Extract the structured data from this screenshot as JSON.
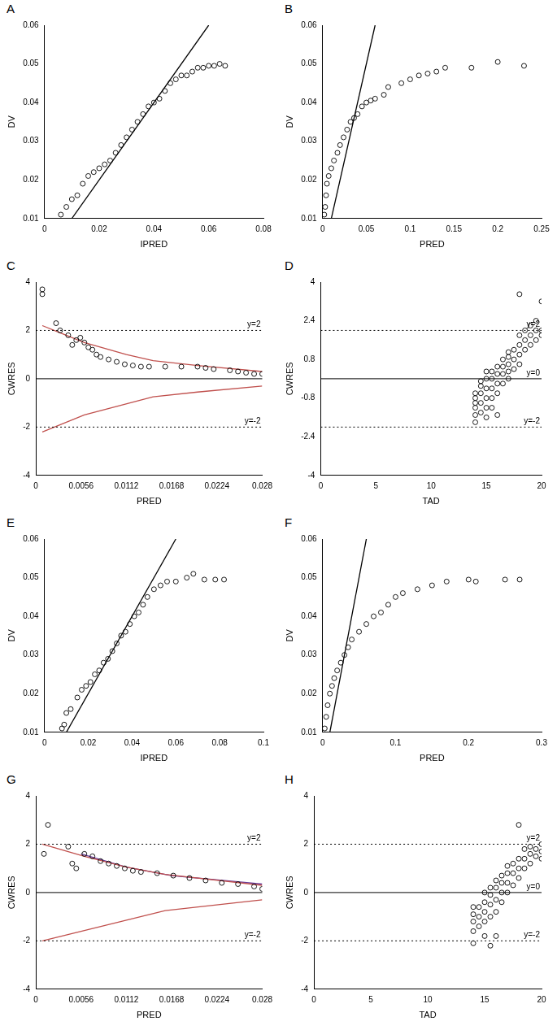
{
  "chart_data": [
    {
      "type": "scatter",
      "title": "A",
      "x_label": "IPRED",
      "y_label": "DV",
      "grid": false,
      "xlim": [
        0,
        0.08
      ],
      "xticks": [
        0,
        0.02,
        0.04,
        0.06,
        0.08
      ],
      "ylim": [
        0.01,
        0.06
      ],
      "yticks": [
        0.01,
        0.02,
        0.03,
        0.04,
        0.05,
        0.06
      ],
      "series": [
        {
          "type": "scatter",
          "marker": "circle",
          "color": "#000000",
          "x": [
            0.006,
            0.008,
            0.01,
            0.012,
            0.014,
            0.016,
            0.018,
            0.02,
            0.022,
            0.024,
            0.026,
            0.028,
            0.03,
            0.032,
            0.034,
            0.036,
            0.038,
            0.04,
            0.042,
            0.044,
            0.046,
            0.048,
            0.05,
            0.052,
            0.054,
            0.056,
            0.058,
            0.06,
            0.062,
            0.064,
            0.066
          ],
          "values": [
            0.011,
            0.013,
            0.015,
            0.016,
            0.019,
            0.021,
            0.022,
            0.023,
            0.024,
            0.025,
            0.027,
            0.029,
            0.031,
            0.033,
            0.035,
            0.037,
            0.039,
            0.04,
            0.041,
            0.043,
            0.045,
            0.046,
            0.047,
            0.047,
            0.048,
            0.049,
            0.049,
            0.0495,
            0.0495,
            0.05,
            0.0495
          ]
        },
        {
          "type": "line",
          "line_style": "solid",
          "color": "#000000",
          "x": [
            0.01,
            0.06
          ],
          "values": [
            0.01,
            0.06
          ]
        }
      ]
    },
    {
      "type": "scatter",
      "title": "B",
      "x_label": "PRED",
      "y_label": "DV",
      "grid": false,
      "xlim": [
        0,
        0.25
      ],
      "xticks": [
        0,
        0.05,
        0.1,
        0.15,
        0.2,
        0.25
      ],
      "ylim": [
        0.01,
        0.06
      ],
      "yticks": [
        0.01,
        0.02,
        0.03,
        0.04,
        0.05,
        0.06
      ],
      "series": [
        {
          "type": "scatter",
          "marker": "circle",
          "color": "#000000",
          "x": [
            0.002,
            0.003,
            0.004,
            0.005,
            0.007,
            0.01,
            0.013,
            0.017,
            0.02,
            0.024,
            0.028,
            0.032,
            0.036,
            0.04,
            0.045,
            0.05,
            0.055,
            0.06,
            0.07,
            0.075,
            0.09,
            0.1,
            0.11,
            0.12,
            0.13,
            0.14,
            0.17,
            0.2,
            0.23
          ],
          "values": [
            0.011,
            0.013,
            0.016,
            0.019,
            0.021,
            0.023,
            0.025,
            0.027,
            0.029,
            0.031,
            0.033,
            0.035,
            0.036,
            0.037,
            0.039,
            0.04,
            0.0405,
            0.041,
            0.042,
            0.044,
            0.045,
            0.046,
            0.047,
            0.0475,
            0.048,
            0.049,
            0.049,
            0.0505,
            0.0495
          ]
        },
        {
          "type": "line",
          "line_style": "solid",
          "color": "#000000",
          "x": [
            0.01,
            0.06
          ],
          "values": [
            0.01,
            0.06
          ]
        }
      ]
    },
    {
      "type": "scatter",
      "title": "C",
      "x_label": "PRED",
      "y_label": "CWRES",
      "grid": false,
      "xlim": [
        0,
        0.028
      ],
      "xticks": [
        0,
        0.0056,
        0.0112,
        0.0168,
        0.0224,
        0.028
      ],
      "ylim": [
        -4,
        4
      ],
      "yticks": [
        -4,
        -2,
        0,
        2,
        4
      ],
      "annotations": [
        {
          "value": 2,
          "label": "y=2",
          "line_style": "dotted"
        },
        {
          "value": 0,
          "line_style": "solid"
        },
        {
          "value": -2,
          "label": "y=-2",
          "line_style": "dotted"
        }
      ],
      "series": [
        {
          "type": "scatter",
          "marker": "circle",
          "color": "#000000",
          "x": [
            0.0008,
            0.0008,
            0.0025,
            0.003,
            0.004,
            0.0045,
            0.005,
            0.0055,
            0.006,
            0.0065,
            0.007,
            0.0075,
            0.008,
            0.009,
            0.01,
            0.011,
            0.012,
            0.013,
            0.014,
            0.016,
            0.018,
            0.02,
            0.021,
            0.022,
            0.024,
            0.025,
            0.026,
            0.027,
            0.028
          ],
          "values": [
            3.7,
            3.5,
            2.3,
            2.0,
            1.8,
            1.4,
            1.6,
            1.7,
            1.5,
            1.3,
            1.2,
            1.0,
            0.9,
            0.8,
            0.7,
            0.6,
            0.55,
            0.5,
            0.5,
            0.5,
            0.5,
            0.5,
            0.45,
            0.4,
            0.35,
            0.3,
            0.25,
            0.2,
            0.2
          ]
        },
        {
          "type": "line",
          "line_style": "solid",
          "color": "#c0504d",
          "x": [
            0.0008,
            0.003,
            0.006,
            0.0112,
            0.0145,
            0.02,
            0.028
          ],
          "values": [
            2.2,
            1.9,
            1.5,
            1.0,
            0.75,
            0.55,
            0.3
          ]
        },
        {
          "type": "line",
          "line_style": "solid",
          "color": "#c0504d",
          "x": [
            0.0008,
            0.006,
            0.0145,
            0.02,
            0.028
          ],
          "values": [
            -2.2,
            -1.5,
            -0.75,
            -0.55,
            -0.3
          ]
        }
      ]
    },
    {
      "type": "scatter",
      "title": "D",
      "x_label": "TAD",
      "y_label": "CWRES",
      "grid": false,
      "xlim": [
        0,
        20
      ],
      "xticks": [
        0,
        5,
        10,
        15,
        20
      ],
      "ylim": [
        -4,
        4
      ],
      "yticks": [
        -4,
        -2.4,
        -0.8,
        0.8,
        2.4,
        4
      ],
      "annotations": [
        {
          "value": 2,
          "label": "y=2",
          "line_style": "dotted"
        },
        {
          "value": 0,
          "label": "y=0",
          "line_style": "solid"
        },
        {
          "value": -2,
          "label": "y=-2",
          "line_style": "dotted"
        }
      ],
      "series": [
        {
          "type": "scatter",
          "marker": "circle",
          "color": "#000000",
          "x": [
            14,
            14,
            14,
            14,
            14,
            14,
            14.5,
            14.5,
            14.5,
            14.5,
            14.5,
            15,
            15,
            15,
            15,
            15,
            15,
            15.5,
            15.5,
            15.5,
            15.5,
            15.5,
            16,
            16,
            16,
            16,
            16,
            16.5,
            16.5,
            16.5,
            16.5,
            17,
            17,
            17,
            17,
            17,
            17.5,
            17.5,
            17.5,
            18,
            18,
            18,
            18,
            18,
            18.5,
            18.5,
            18.5,
            19,
            19,
            19,
            19.5,
            19.5,
            19.5,
            20,
            20,
            20
          ],
          "values": [
            -1.8,
            -1.5,
            -1.2,
            -1.0,
            -0.8,
            -0.6,
            -1.4,
            -1.0,
            -0.6,
            -0.3,
            -0.1,
            -1.6,
            -1.2,
            -0.8,
            -0.4,
            0,
            0.3,
            -1.2,
            -0.8,
            -0.4,
            0,
            0.3,
            -1.5,
            -0.6,
            -0.2,
            0.2,
            0.5,
            -0.2,
            0.2,
            0.5,
            0.8,
            0,
            0.3,
            0.6,
            0.9,
            1.1,
            0.4,
            0.8,
            1.2,
            0.6,
            1.0,
            1.4,
            1.8,
            3.5,
            1.2,
            1.6,
            2.0,
            1.4,
            1.8,
            2.2,
            1.6,
            2.0,
            2.4,
            1.8,
            2.0,
            3.2
          ]
        }
      ]
    },
    {
      "type": "scatter",
      "title": "E",
      "x_label": "IPRED",
      "y_label": "DV",
      "grid": false,
      "xlim": [
        0,
        0.1
      ],
      "xticks": [
        0,
        0.02,
        0.04,
        0.06,
        0.08,
        0.1
      ],
      "ylim": [
        0.01,
        0.06
      ],
      "yticks": [
        0.01,
        0.02,
        0.03,
        0.04,
        0.05,
        0.06
      ],
      "series": [
        {
          "type": "scatter",
          "marker": "circle",
          "color": "#000000",
          "x": [
            0.008,
            0.009,
            0.01,
            0.012,
            0.015,
            0.017,
            0.019,
            0.021,
            0.023,
            0.025,
            0.027,
            0.029,
            0.031,
            0.033,
            0.035,
            0.037,
            0.039,
            0.041,
            0.043,
            0.045,
            0.047,
            0.05,
            0.053,
            0.056,
            0.06,
            0.065,
            0.068,
            0.073,
            0.078,
            0.082
          ],
          "values": [
            0.011,
            0.012,
            0.015,
            0.016,
            0.019,
            0.021,
            0.022,
            0.023,
            0.025,
            0.026,
            0.028,
            0.029,
            0.031,
            0.033,
            0.035,
            0.036,
            0.038,
            0.04,
            0.041,
            0.043,
            0.045,
            0.047,
            0.048,
            0.049,
            0.049,
            0.05,
            0.051,
            0.0495,
            0.0495,
            0.0495
          ]
        },
        {
          "type": "line",
          "line_style": "solid",
          "color": "#000000",
          "x": [
            0.01,
            0.06
          ],
          "values": [
            0.01,
            0.06
          ]
        }
      ]
    },
    {
      "type": "scatter",
      "title": "F",
      "x_label": "PRED",
      "y_label": "DV",
      "grid": false,
      "xlim": [
        0,
        0.3
      ],
      "xticks": [
        0,
        0.1,
        0.2,
        0.3
      ],
      "ylim": [
        0.01,
        0.06
      ],
      "yticks": [
        0.01,
        0.02,
        0.03,
        0.04,
        0.05,
        0.06
      ],
      "series": [
        {
          "type": "scatter",
          "marker": "circle",
          "color": "#000000",
          "x": [
            0.003,
            0.005,
            0.007,
            0.01,
            0.013,
            0.016,
            0.02,
            0.025,
            0.03,
            0.035,
            0.04,
            0.05,
            0.06,
            0.07,
            0.08,
            0.09,
            0.1,
            0.11,
            0.13,
            0.15,
            0.17,
            0.2,
            0.21,
            0.25,
            0.27
          ],
          "values": [
            0.011,
            0.014,
            0.017,
            0.02,
            0.022,
            0.024,
            0.026,
            0.028,
            0.03,
            0.032,
            0.034,
            0.036,
            0.038,
            0.04,
            0.041,
            0.043,
            0.045,
            0.046,
            0.047,
            0.048,
            0.049,
            0.0495,
            0.049,
            0.0495,
            0.0495
          ]
        },
        {
          "type": "line",
          "line_style": "solid",
          "color": "#000000",
          "x": [
            0.01,
            0.06
          ],
          "values": [
            0.01,
            0.06
          ]
        }
      ]
    },
    {
      "type": "scatter",
      "title": "G",
      "x_label": "PRED",
      "y_label": "CWRES",
      "grid": false,
      "xlim": [
        0,
        0.028
      ],
      "xticks": [
        0,
        0.0056,
        0.0112,
        0.0168,
        0.0224,
        0.028
      ],
      "ylim": [
        -4,
        4
      ],
      "yticks": [
        -4,
        -2,
        0,
        2,
        4
      ],
      "annotations": [
        {
          "value": 2,
          "label": "y=2",
          "line_style": "dotted"
        },
        {
          "value": 0,
          "line_style": "solid"
        },
        {
          "value": -2,
          "label": "y=-2",
          "line_style": "dotted"
        }
      ],
      "series": [
        {
          "type": "scatter",
          "marker": "circle",
          "color": "#000000",
          "x": [
            0.0015,
            0.001,
            0.004,
            0.0045,
            0.005,
            0.006,
            0.007,
            0.008,
            0.009,
            0.01,
            0.011,
            0.012,
            0.013,
            0.015,
            0.017,
            0.019,
            0.021,
            0.023,
            0.025,
            0.027,
            0.028
          ],
          "values": [
            2.8,
            1.6,
            1.9,
            1.2,
            1.0,
            1.6,
            1.5,
            1.3,
            1.2,
            1.1,
            1.0,
            0.9,
            0.85,
            0.8,
            0.7,
            0.6,
            0.5,
            0.4,
            0.35,
            0.25,
            0.15
          ]
        },
        {
          "type": "line",
          "line_style": "solid",
          "color": "#c0504d",
          "x": [
            0.0008,
            0.006,
            0.0112,
            0.016,
            0.028
          ],
          "values": [
            2.0,
            1.5,
            1.05,
            0.75,
            0.3
          ]
        },
        {
          "type": "line",
          "line_style": "solid",
          "color": "#6a3d9a",
          "x": [
            0.0056,
            0.0112,
            0.0168,
            0.028
          ],
          "values": [
            1.6,
            1.05,
            0.7,
            0.35
          ]
        },
        {
          "type": "line",
          "line_style": "solid",
          "color": "#c0504d",
          "x": [
            0.0008,
            0.016,
            0.028
          ],
          "values": [
            -2.0,
            -0.75,
            -0.3
          ]
        }
      ]
    },
    {
      "type": "scatter",
      "title": "H",
      "x_label": "TAD",
      "y_label": "CWRES",
      "grid": false,
      "xlim": [
        0,
        20
      ],
      "xticks": [
        0,
        5,
        10,
        15,
        20
      ],
      "ylim": [
        -4,
        4
      ],
      "yticks": [
        -4,
        -2,
        0,
        2,
        4
      ],
      "annotations": [
        {
          "value": 2,
          "label": "y=2",
          "line_style": "dotted"
        },
        {
          "value": 0,
          "label": "y=0",
          "line_style": "solid"
        },
        {
          "value": -2,
          "label": "y=-2",
          "line_style": "dotted"
        }
      ],
      "series": [
        {
          "type": "scatter",
          "marker": "circle",
          "color": "#000000",
          "x": [
            14,
            14,
            14,
            14,
            14,
            14.5,
            14.5,
            14.5,
            15,
            15,
            15,
            15,
            15,
            15.5,
            15.5,
            15.5,
            15.5,
            15.5,
            16,
            16,
            16,
            16,
            16,
            16.5,
            16.5,
            16.5,
            16.5,
            17,
            17,
            17,
            17,
            17.5,
            17.5,
            17.5,
            18,
            18,
            18,
            18,
            18.5,
            18.5,
            18.5,
            19,
            19,
            19,
            19.5,
            19.5,
            20,
            20,
            20
          ],
          "values": [
            -2.1,
            -1.6,
            -1.2,
            -0.9,
            -0.6,
            -1.4,
            -1.0,
            -0.6,
            -1.8,
            -1.2,
            -0.8,
            -0.4,
            0,
            -2.2,
            -1.0,
            -0.5,
            -0.1,
            0.2,
            -1.8,
            -0.8,
            -0.3,
            0.2,
            0.5,
            -0.4,
            0,
            0.4,
            0.7,
            0,
            0.4,
            0.8,
            1.1,
            0.3,
            0.8,
            1.2,
            0.6,
            1.0,
            1.4,
            2.8,
            1.0,
            1.4,
            1.8,
            1.2,
            1.6,
            1.9,
            1.5,
            1.8,
            1.4,
            1.7,
            2.0
          ]
        }
      ]
    }
  ]
}
